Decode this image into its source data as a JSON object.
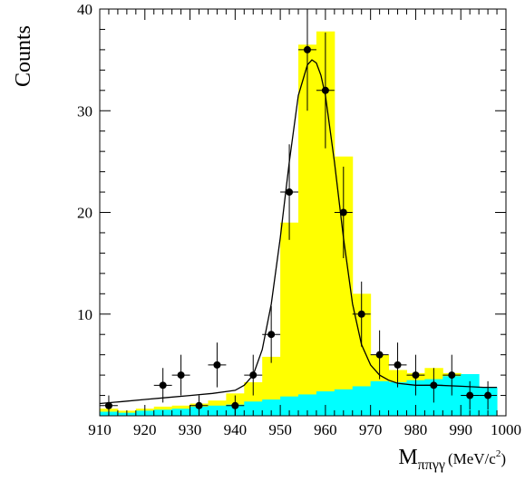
{
  "chart_data": {
    "type": "bar",
    "ylabel": "Counts",
    "xlabel_main": "M",
    "xlabel_sub": "ππγγ",
    "xlabel_unit_pre": "(MeV/c",
    "xlabel_unit_sup": "2",
    "xlabel_unit_post": ")",
    "xlim": [
      910,
      1000
    ],
    "ylim": [
      0,
      40
    ],
    "xticks": [
      910,
      920,
      930,
      940,
      950,
      960,
      970,
      980,
      990,
      1000
    ],
    "yticks": [
      10,
      20,
      30,
      40
    ],
    "bin_edges": [
      910,
      914,
      918,
      922,
      926,
      930,
      934,
      938,
      942,
      946,
      950,
      954,
      958,
      962,
      966,
      970,
      974,
      978,
      982,
      986,
      990,
      994,
      998
    ],
    "series": [
      {
        "name": "",
        "style": "filled-histogram",
        "color": "#ffff00",
        "values": [
          0.7,
          0.5,
          0.7,
          0.9,
          1.0,
          1.2,
          1.5,
          2.2,
          3.3,
          5.8,
          19.0,
          36.5,
          37.8,
          25.5,
          12.0,
          6.0,
          4.5,
          4.2,
          4.7,
          4.2,
          3.0,
          2.2
        ]
      },
      {
        "name": "",
        "style": "filled-histogram",
        "color": "#00ffff",
        "values": [
          0.4,
          0.3,
          0.5,
          0.6,
          0.7,
          0.9,
          1.0,
          1.1,
          1.4,
          1.6,
          1.9,
          2.1,
          2.4,
          2.6,
          2.9,
          3.4,
          3.3,
          3.5,
          3.6,
          3.9,
          4.1,
          2.8
        ]
      },
      {
        "name": "",
        "style": "points-with-errors",
        "color": "#000000",
        "x": [
          912,
          924,
          928,
          932,
          936,
          940,
          944,
          948,
          952,
          956,
          960,
          964,
          968,
          972,
          976,
          980,
          984,
          988,
          992,
          996
        ],
        "y": [
          1,
          3,
          4,
          1,
          5,
          1,
          4,
          8,
          22,
          36,
          32,
          20,
          10,
          6,
          5,
          4,
          3,
          4,
          2,
          2
        ],
        "xerr": 2,
        "yerr": [
          1.0,
          1.7,
          2.0,
          1.0,
          2.2,
          1.0,
          2.0,
          2.8,
          4.7,
          6.0,
          5.7,
          4.5,
          3.2,
          2.4,
          2.2,
          2.0,
          1.7,
          2.0,
          1.4,
          1.4
        ]
      },
      {
        "name": "",
        "style": "curve",
        "color": "#000000",
        "x": [
          910,
          915,
          920,
          925,
          930,
          935,
          940,
          942,
          944,
          946,
          948,
          950,
          952,
          954,
          956,
          957,
          958,
          959,
          960,
          962,
          964,
          966,
          968,
          970,
          972,
          974,
          976,
          980,
          985,
          990,
          995,
          998
        ],
        "y": [
          1.2,
          1.4,
          1.6,
          1.8,
          2.0,
          2.2,
          2.5,
          3.0,
          4.0,
          6.5,
          11.0,
          17.5,
          25.0,
          31.5,
          34.5,
          35.0,
          34.7,
          33.5,
          31.5,
          25.0,
          17.5,
          11.0,
          7.0,
          5.0,
          4.0,
          3.5,
          3.2,
          3.0,
          3.0,
          2.9,
          2.8,
          2.8
        ]
      }
    ]
  }
}
